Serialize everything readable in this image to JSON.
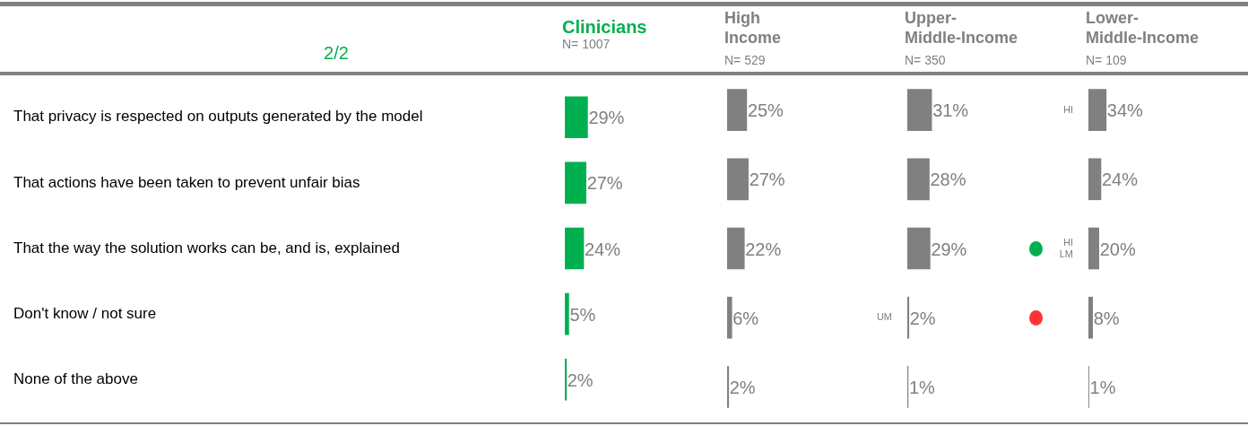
{
  "chart_data": [
    {
      "type": "bar",
      "orientation": "horizontal",
      "title": "Clinicians",
      "subtitle": "N= 1007",
      "annotations": [
        "2/2"
      ],
      "tick_labels": "y",
      "color": "#00b050",
      "categories": [
        "That privacy is respected on outputs generated by the model",
        "That actions have been taken to prevent unfair bias",
        "That the way the solution works can be, and is, explained",
        "Don't know / not sure",
        "None of the above"
      ],
      "values": [
        29,
        27,
        24,
        5,
        2
      ],
      "value_labels": [
        "29%",
        "27%",
        "24%",
        "5%",
        "2%"
      ]
    },
    {
      "type": "bar",
      "orientation": "horizontal",
      "title": "High Income",
      "subtitle": "N= 529",
      "color": "#808080",
      "categories": [
        null,
        null,
        null,
        null,
        null
      ],
      "values": [
        25,
        27,
        22,
        6,
        2
      ],
      "value_labels": [
        "25%",
        "27%",
        "22%",
        "6%",
        "2%"
      ]
    },
    {
      "type": "bar",
      "orientation": "horizontal",
      "title": "Upper-Middle-Income",
      "subtitle": "N= 350",
      "color": "#808080",
      "categories": [
        null,
        null,
        null,
        null,
        null
      ],
      "values": [
        31,
        28,
        29,
        2,
        1
      ],
      "value_labels": [
        "31%",
        "28%",
        "29%",
        "2%",
        "1%"
      ],
      "annotations": [
        "UM"
      ]
    },
    {
      "type": "bar",
      "orientation": "horizontal",
      "title": "Lower-Middle-Income",
      "subtitle": "N= 109",
      "color": "#808080",
      "categories": [
        null,
        null,
        null,
        null,
        null
      ],
      "values": [
        34,
        24,
        20,
        8,
        1
      ],
      "value_labels": [
        "34%",
        "24%",
        "20%",
        "8%",
        "1%"
      ],
      "annotations": [
        "HI",
        "HI LM"
      ]
    }
  ]
}
